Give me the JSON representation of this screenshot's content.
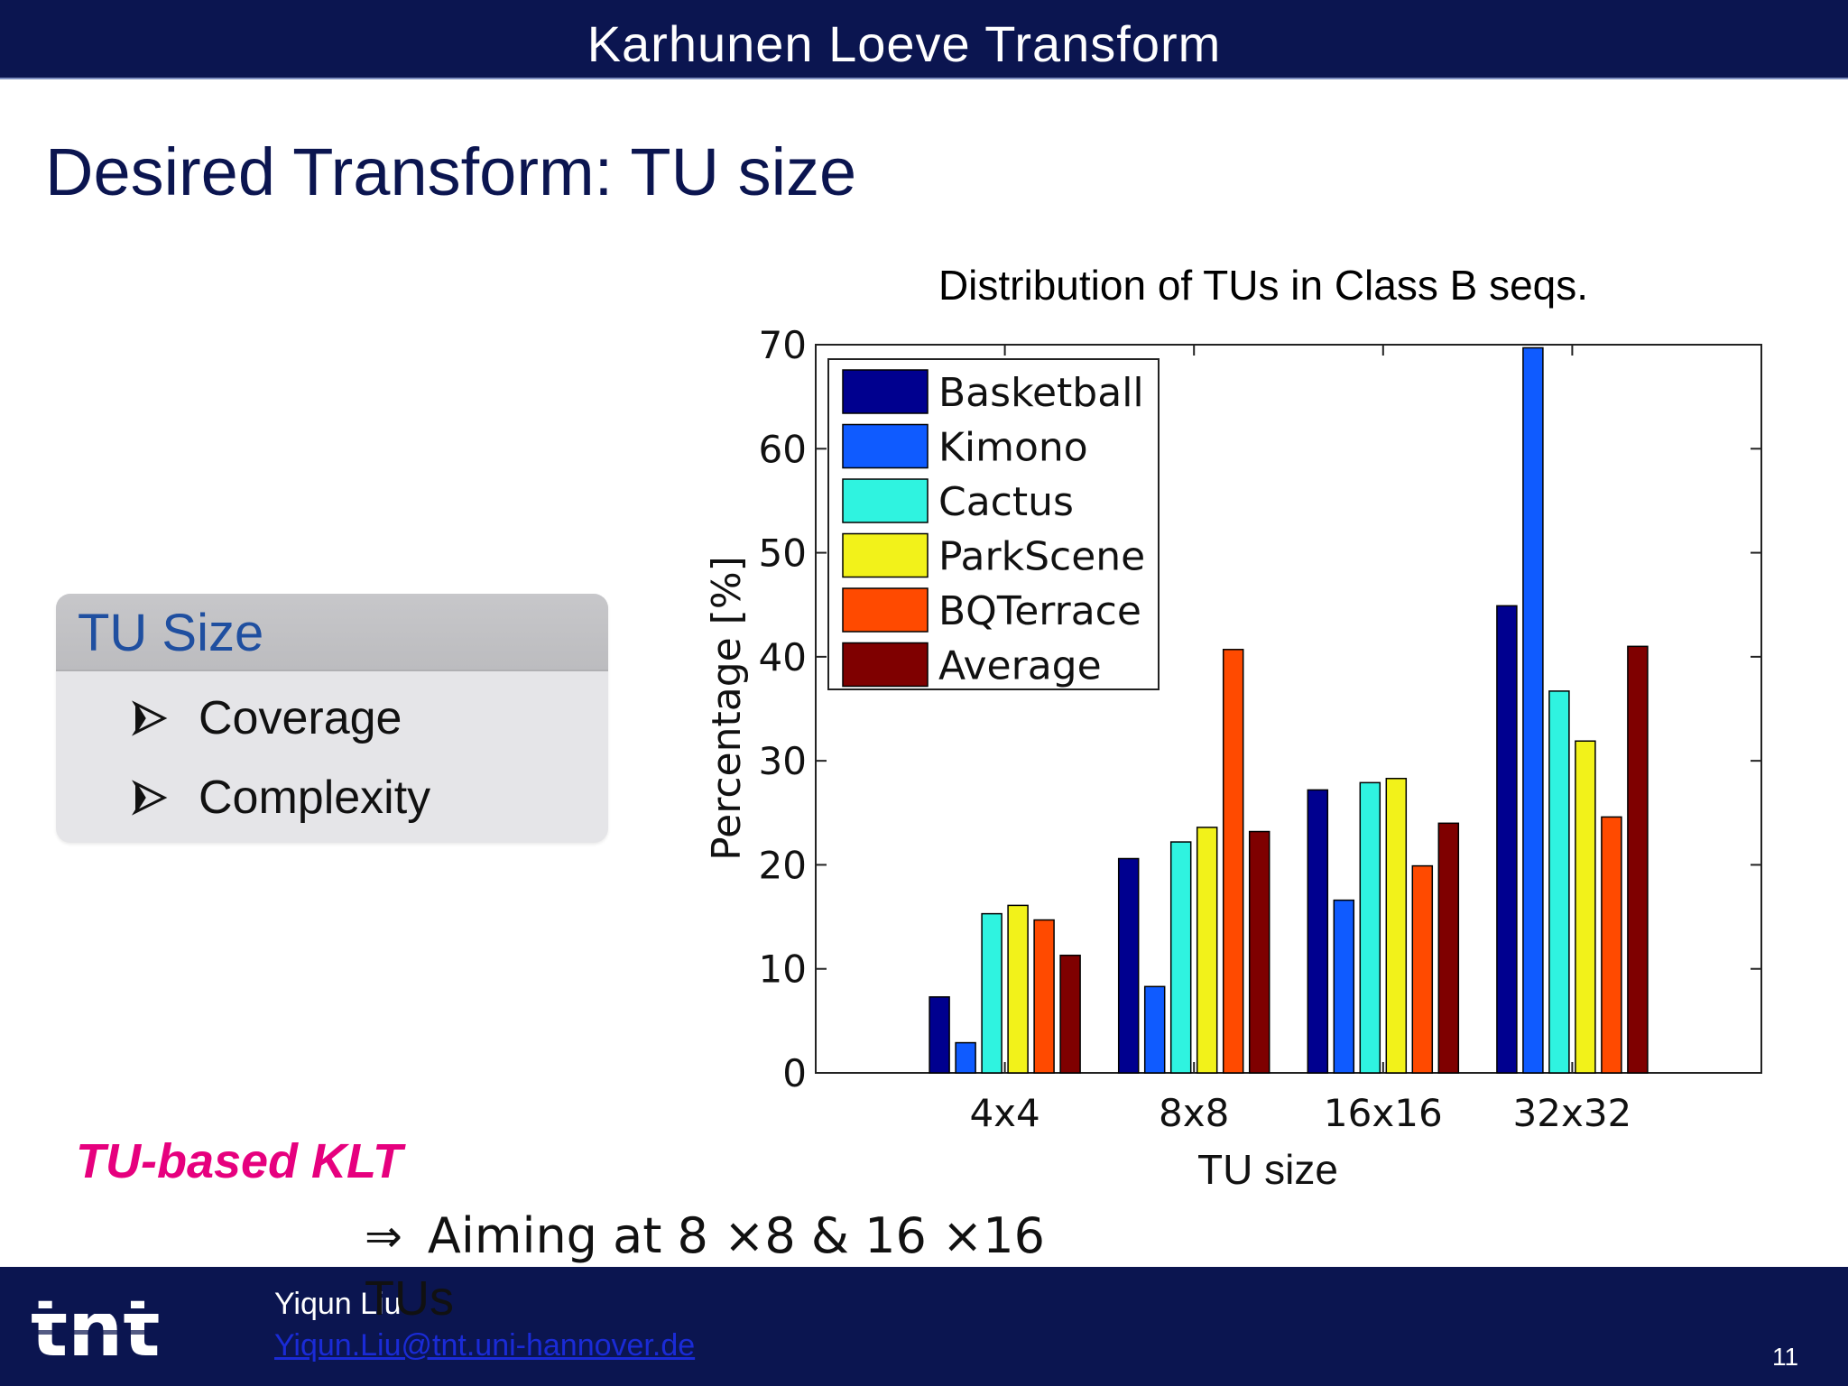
{
  "header": {
    "title": "Karhunen Loeve Transform"
  },
  "slide": {
    "title": "Desired Transform: TU size"
  },
  "tu_box": {
    "title": "TU Size",
    "items": [
      "Coverage",
      "Complexity"
    ]
  },
  "klt": {
    "label": "TU-based KLT",
    "aim_text": "Aiming at 8 ×8 & 16 ×16",
    "aim_text_cont": "TUs"
  },
  "footer": {
    "logo_text": "tnt",
    "author": "Yiqun Liu",
    "email": "Yiqun.Liu@tnt.uni-hannover.de",
    "page": "11"
  },
  "colors": {
    "bar_navy": "#0b1550",
    "accent_magenta": "#e6007e",
    "box_title_blue": "#1f4fa0"
  },
  "chart_data": {
    "type": "bar",
    "title": "Distribution of TUs in Class B seqs.",
    "xlabel": "TU size",
    "ylabel": "Percentage [%]",
    "categories": [
      "4x4",
      "8x8",
      "16x16",
      "32x32"
    ],
    "ylim": [
      0,
      70
    ],
    "yticks": [
      "0",
      "10",
      "20",
      "30",
      "40",
      "50",
      "60",
      "70"
    ],
    "legend_position": "top-left",
    "grid": false,
    "series": [
      {
        "name": "Basketball",
        "color": "#00008f",
        "values": [
          7.3,
          20.6,
          27.2,
          44.9
        ]
      },
      {
        "name": "Kimono",
        "color": "#0f5bff",
        "values": [
          2.9,
          8.3,
          16.6,
          69.7
        ]
      },
      {
        "name": "Cactus",
        "color": "#2ff3e0",
        "values": [
          15.3,
          22.2,
          27.9,
          36.7
        ]
      },
      {
        "name": "ParkScene",
        "color": "#f2f21a",
        "values": [
          16.1,
          23.6,
          28.3,
          31.9
        ]
      },
      {
        "name": "BQTerrace",
        "color": "#ff4a00",
        "values": [
          14.7,
          40.7,
          19.9,
          24.6
        ]
      },
      {
        "name": "Average",
        "color": "#7f0000",
        "values": [
          11.3,
          23.2,
          24.0,
          41.0
        ]
      }
    ]
  }
}
